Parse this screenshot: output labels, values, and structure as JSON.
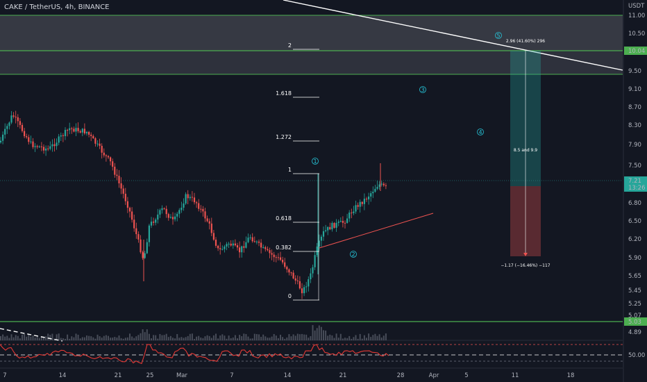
{
  "header": {
    "title": "CAKE / TetherUS, 4h, BINANCE"
  },
  "chart_data": {
    "type": "candlestick",
    "currency_label": "USDT",
    "y_ticks": [
      "11.00",
      "10.50",
      "9.50",
      "9.10",
      "8.70",
      "8.30",
      "7.90",
      "7.50",
      "6.80",
      "6.50",
      "6.20",
      "5.90",
      "5.65",
      "5.45",
      "5.25",
      "5.07",
      "4.89"
    ],
    "x_ticks": [
      "7",
      "14",
      "21",
      "25",
      "Mar",
      "7",
      "14",
      "21",
      "28",
      "Apr",
      "5",
      "11",
      "18"
    ],
    "price_tags": [
      {
        "label": "10.04",
        "color": "#4caf50"
      },
      {
        "label": "7.21",
        "sub": "13:26",
        "color": "#26a69a"
      },
      {
        "label": "5.03",
        "color": "#4caf50"
      }
    ],
    "fib_levels": [
      {
        "ratio": "2"
      },
      {
        "ratio": "1.618"
      },
      {
        "ratio": "1.272"
      },
      {
        "ratio": "1"
      },
      {
        "ratio": "0.618"
      },
      {
        "ratio": "0.382"
      },
      {
        "ratio": "0"
      }
    ],
    "waves": [
      "1",
      "2",
      "3",
      "4",
      "5"
    ],
    "position": {
      "target_text": "2.96 (41.60%) 296",
      "stop_text": "−1.17 (−16.46%) −117",
      "mid_text": "8.5 and 9.9"
    },
    "rsi_tick": "50.00",
    "colors": {
      "up": "#26a69a",
      "down": "#ef5350",
      "support": "#4caf50",
      "rsi": "#e53935",
      "wave": "#26c6da"
    }
  }
}
